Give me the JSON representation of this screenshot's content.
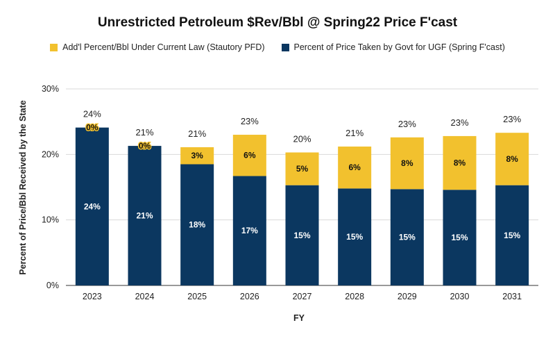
{
  "chart_data": {
    "type": "bar",
    "stacked": true,
    "title": "Unrestricted Petroleum $Rev/Bbl @ Spring22 Price F'cast",
    "xlabel": "FY",
    "ylabel": "Percent of Price/Bbl Received by the State",
    "ylim": [
      0,
      30
    ],
    "yticks": [
      "0%",
      "10%",
      "20%",
      "30%"
    ],
    "grid": true,
    "legend_position": "top",
    "categories": [
      "2023",
      "2024",
      "2025",
      "2026",
      "2027",
      "2028",
      "2029",
      "2030",
      "2031"
    ],
    "series": [
      {
        "name": "Percent of Price Taken by Govt for UGF (Spring F'cast)",
        "color": "#0b3760",
        "values": [
          24.1,
          21.3,
          18.5,
          16.7,
          15.3,
          14.8,
          14.7,
          14.6,
          15.3
        ],
        "labels": [
          "24%",
          "21%",
          "18%",
          "17%",
          "15%",
          "15%",
          "15%",
          "15%",
          "15%"
        ]
      },
      {
        "name": "Add'l Percent/Bbl Under Current Law (Stautory PFD)",
        "color": "#f2c12e",
        "values": [
          0.0,
          0.0,
          2.6,
          6.3,
          5.0,
          6.4,
          7.9,
          8.2,
          8.0
        ],
        "labels": [
          "0%",
          "0%",
          "3%",
          "6%",
          "5%",
          "6%",
          "8%",
          "8%",
          "8%"
        ]
      }
    ],
    "totals": [
      "24%",
      "21%",
      "21%",
      "23%",
      "20%",
      "21%",
      "23%",
      "23%",
      "23%"
    ]
  },
  "legend": {
    "items": [
      {
        "label": "Add'l Percent/Bbl Under Current Law (Stautory PFD)",
        "color": "#f2c12e"
      },
      {
        "label": "Percent of Price Taken by Govt for UGF (Spring F'cast)",
        "color": "#0b3760"
      }
    ]
  }
}
